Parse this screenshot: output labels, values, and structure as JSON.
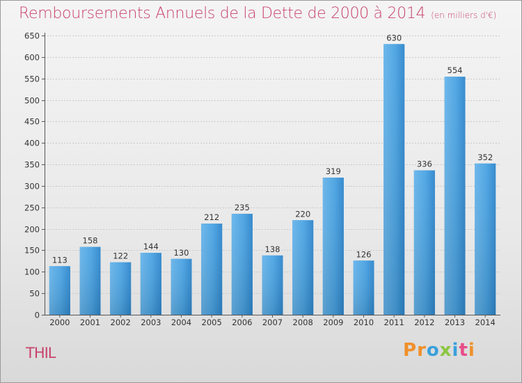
{
  "header": {
    "title": "Remboursements Annuels de la Dette de 2000 à 2014",
    "subtitle": "(en milliers d'€)"
  },
  "footer": {
    "place": "THIL",
    "logo_letters": [
      "P",
      "r",
      "o",
      "x",
      "i",
      "t",
      "i"
    ]
  },
  "colors": {
    "title": "#c8436c",
    "bar": "#3d95d8",
    "logo": [
      "#f0902a",
      "#f0902a",
      "#3aa0dc",
      "#8cc63f",
      "#3aa0dc",
      "#e84c8a",
      "#f0902a"
    ]
  },
  "chart_data": {
    "type": "bar",
    "categories": [
      "2000",
      "2001",
      "2002",
      "2003",
      "2004",
      "2005",
      "2006",
      "2007",
      "2008",
      "2009",
      "2010",
      "2011",
      "2012",
      "2013",
      "2014"
    ],
    "values": [
      113,
      158,
      122,
      144,
      130,
      212,
      235,
      138,
      220,
      319,
      126,
      630,
      336,
      554,
      352
    ],
    "title": "Remboursements Annuels de la Dette de 2000 à 2014",
    "ylim": [
      0,
      650
    ],
    "yticks": [
      "0",
      "50",
      "100",
      "150",
      "200",
      "250",
      "300",
      "350",
      "400",
      "450",
      "500",
      "550",
      "600",
      "650"
    ],
    "grid": true,
    "legend": "none"
  }
}
